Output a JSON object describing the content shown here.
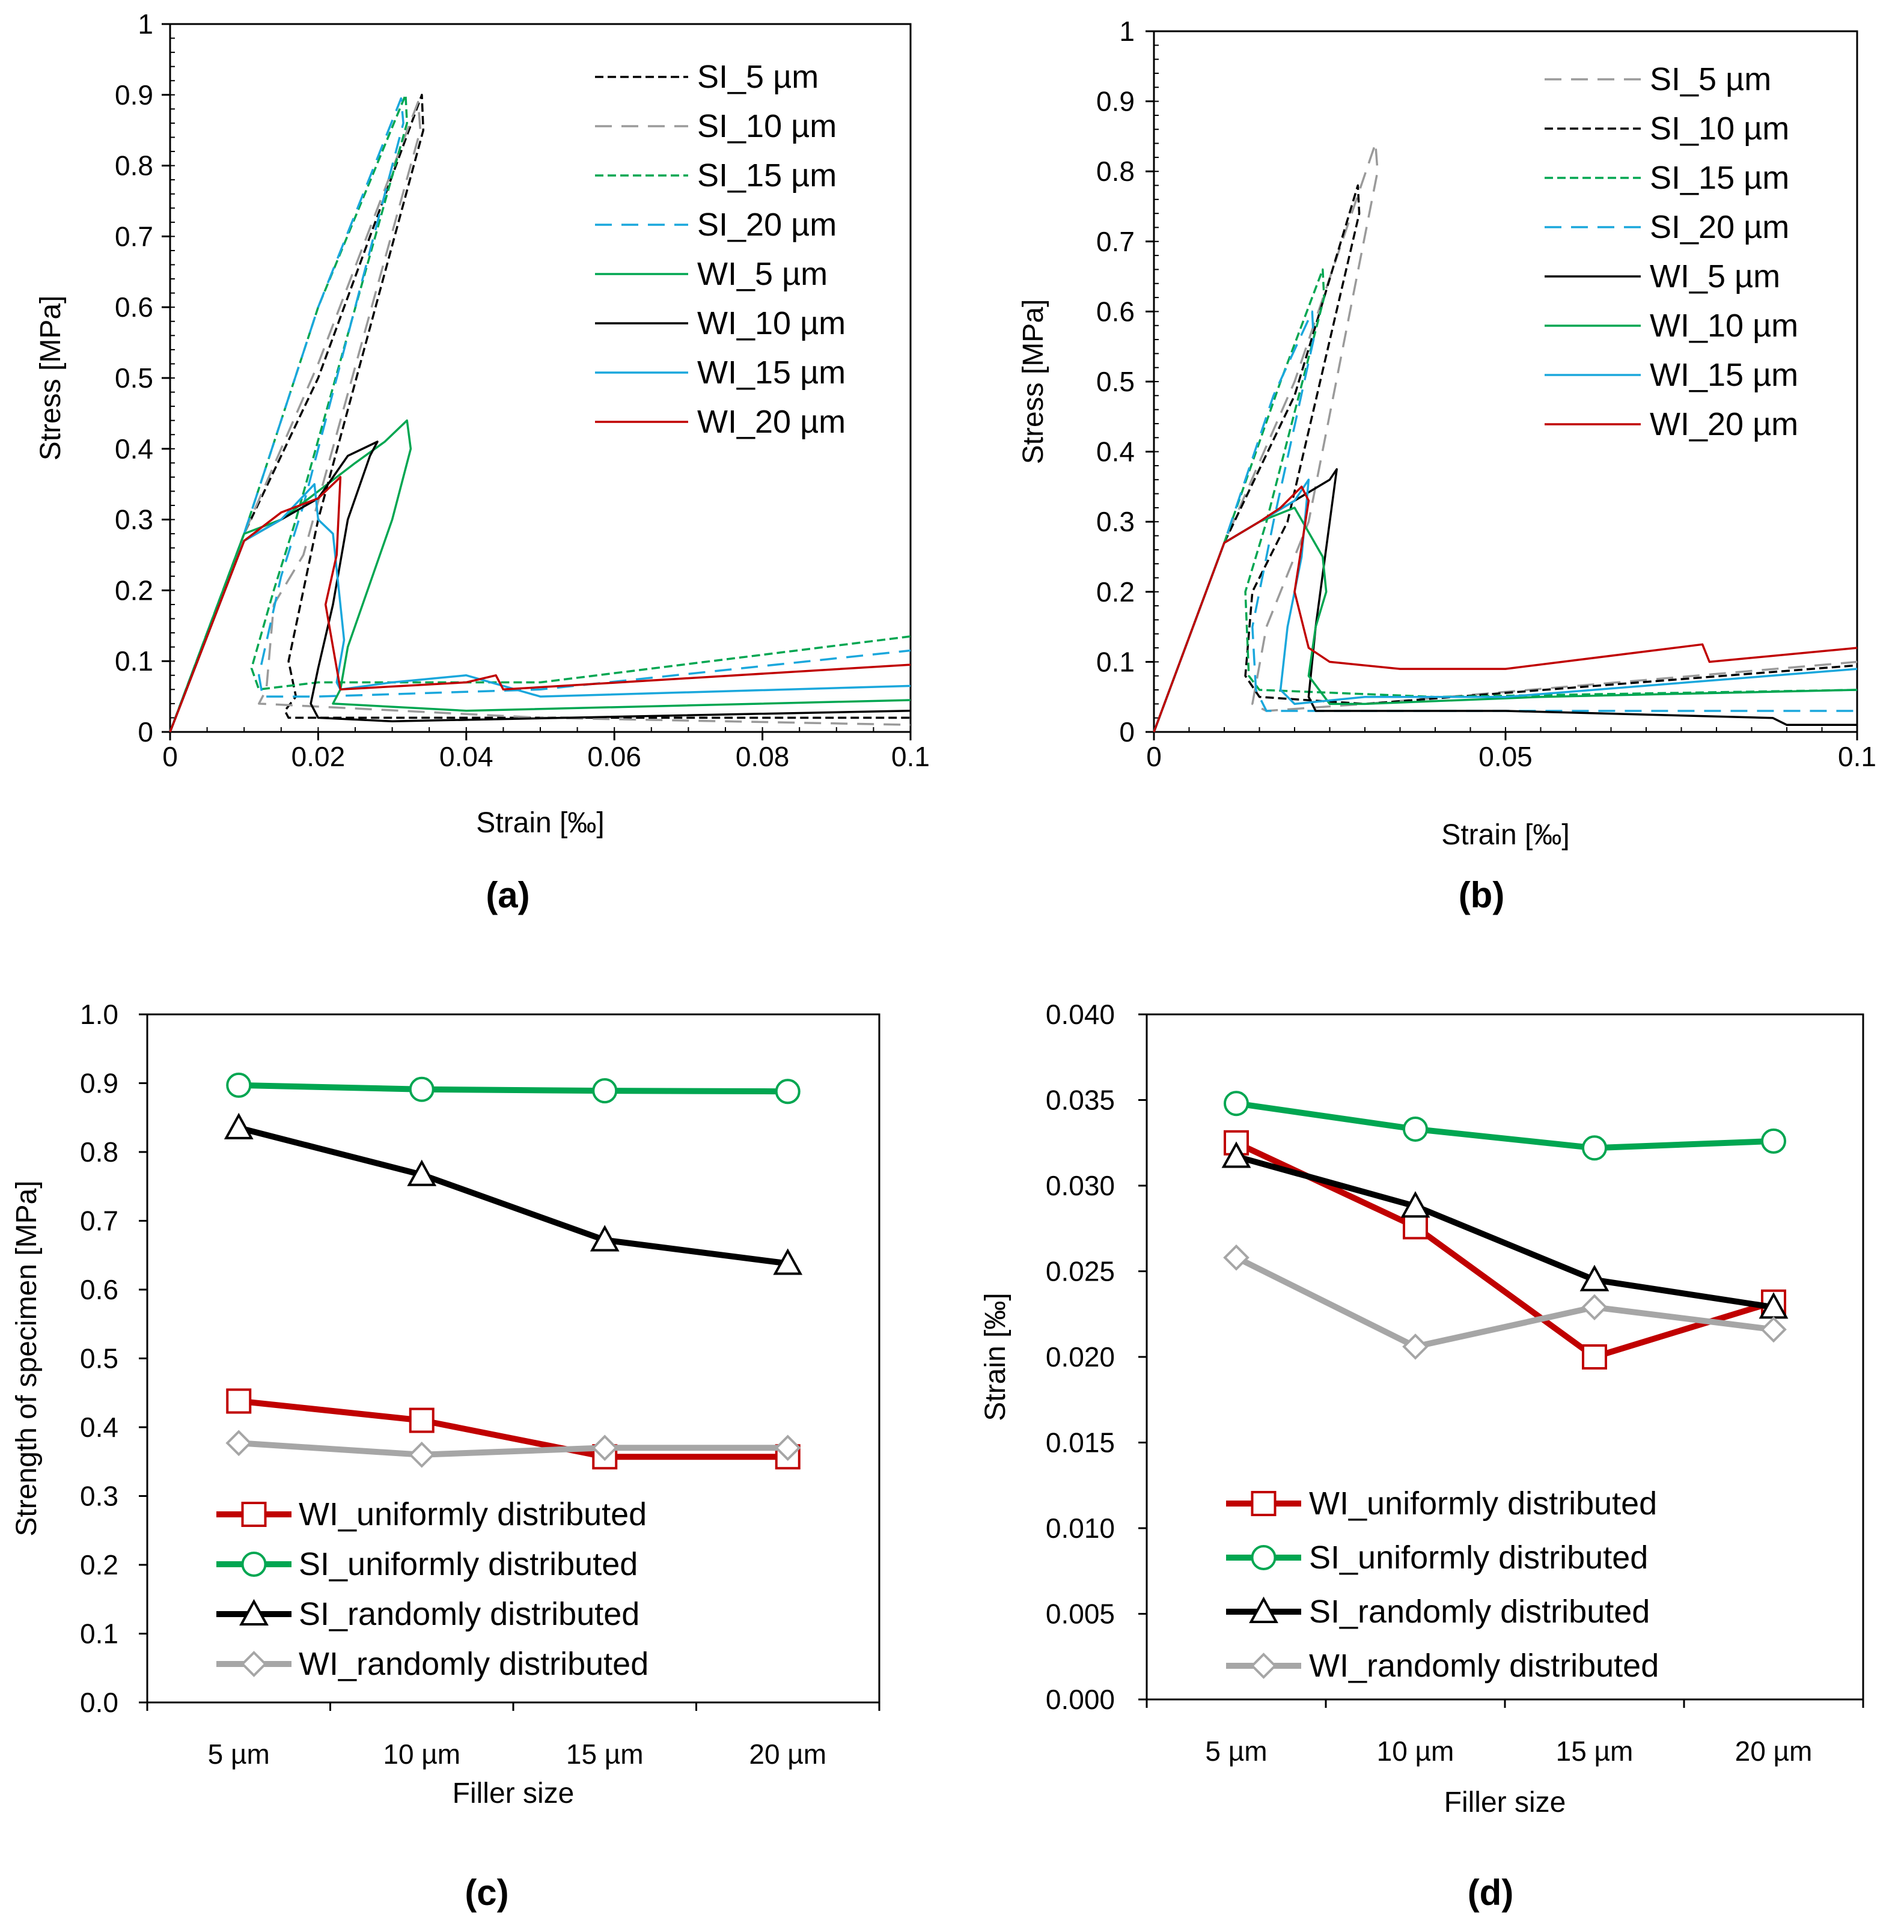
{
  "colors": {
    "black": "#000000",
    "gray": "#9a9a9a",
    "green": "#00a651",
    "cyan": "#1aa7dc",
    "red": "#c00000",
    "lightgray": "#a6a6a6"
  },
  "chart_data": [
    {
      "panel": "(a)",
      "type": "line",
      "xlabel": "Strain [‰]",
      "ylabel": "Stress [MPa]",
      "xlim": [
        0,
        0.1
      ],
      "ylim": [
        0,
        1
      ],
      "xticks": [
        0,
        0.02,
        0.04,
        0.06,
        0.08,
        0.1
      ],
      "xtick_labels": [
        "0",
        "0.02",
        "0.04",
        "0.06",
        "0.08",
        "0.1"
      ],
      "yticks": [
        0,
        0.1,
        0.2,
        0.3,
        0.4,
        0.5,
        0.6,
        0.7,
        0.8,
        0.9,
        1
      ],
      "ytick_labels": [
        "0",
        "0.1",
        "0.2",
        "0.3",
        "0.4",
        "0.5",
        "0.6",
        "0.7",
        "0.8",
        "0.9",
        "1"
      ],
      "legend_position": "top-right",
      "series": [
        {
          "name": "SI_5 µm",
          "color": "black",
          "dash": "short",
          "x": [
            0,
            0.01,
            0.02,
            0.034,
            0.0342,
            0.02,
            0.018,
            0.016,
            0.017,
            0.0155,
            0.016,
            0.1
          ],
          "y": [
            0,
            0.28,
            0.5,
            0.9,
            0.85,
            0.3,
            0.2,
            0.1,
            0.05,
            0.03,
            0.02,
            0.02
          ]
        },
        {
          "name": "SI_10 µm",
          "color": "gray",
          "dash": "long",
          "x": [
            0,
            0.01,
            0.02,
            0.0335,
            0.0338,
            0.018,
            0.014,
            0.013,
            0.012,
            0.05,
            0.1
          ],
          "y": [
            0,
            0.28,
            0.52,
            0.89,
            0.85,
            0.25,
            0.18,
            0.06,
            0.04,
            0.02,
            0.01
          ]
        },
        {
          "name": "SI_15 µm",
          "color": "green",
          "dash": "short",
          "x": [
            0,
            0.01,
            0.02,
            0.0318,
            0.032,
            0.017,
            0.014,
            0.011,
            0.012,
            0.02,
            0.05,
            0.1
          ],
          "y": [
            0,
            0.28,
            0.6,
            0.9,
            0.86,
            0.3,
            0.2,
            0.09,
            0.06,
            0.07,
            0.07,
            0.135
          ]
        },
        {
          "name": "SI_20 µm",
          "color": "cyan",
          "dash": "long",
          "x": [
            0,
            0.01,
            0.02,
            0.0312,
            0.0315,
            0.018,
            0.015,
            0.012,
            0.0125,
            0.02,
            0.05,
            0.1
          ],
          "y": [
            0,
            0.28,
            0.6,
            0.895,
            0.86,
            0.32,
            0.22,
            0.08,
            0.05,
            0.05,
            0.06,
            0.115
          ]
        },
        {
          "name": "WI_5 µm",
          "color": "green",
          "dash": "solid",
          "x": [
            0,
            0.01,
            0.015,
            0.02,
            0.025,
            0.029,
            0.032,
            0.0325,
            0.03,
            0.024,
            0.023,
            0.022,
            0.04,
            0.1
          ],
          "y": [
            0,
            0.28,
            0.3,
            0.34,
            0.38,
            0.41,
            0.44,
            0.4,
            0.3,
            0.12,
            0.06,
            0.04,
            0.03,
            0.045
          ]
        },
        {
          "name": "WI_10 µm",
          "color": "black",
          "dash": "solid",
          "x": [
            0,
            0.01,
            0.015,
            0.02,
            0.024,
            0.028,
            0.027,
            0.024,
            0.022,
            0.02,
            0.019,
            0.02,
            0.03,
            0.1
          ],
          "y": [
            0,
            0.27,
            0.3,
            0.33,
            0.39,
            0.41,
            0.39,
            0.3,
            0.18,
            0.09,
            0.04,
            0.02,
            0.015,
            0.03
          ]
        },
        {
          "name": "WI_15 µm",
          "color": "cyan",
          "dash": "solid",
          "x": [
            0,
            0.01,
            0.015,
            0.0195,
            0.02,
            0.022,
            0.0235,
            0.0225,
            0.023,
            0.03,
            0.04,
            0.05,
            0.1
          ],
          "y": [
            0,
            0.27,
            0.3,
            0.35,
            0.3,
            0.28,
            0.13,
            0.07,
            0.06,
            0.07,
            0.08,
            0.05,
            0.065
          ]
        },
        {
          "name": "WI_20 µm",
          "color": "red",
          "dash": "solid",
          "x": [
            0,
            0.01,
            0.015,
            0.02,
            0.023,
            0.0225,
            0.021,
            0.022,
            0.023,
            0.04,
            0.044,
            0.045,
            0.1
          ],
          "y": [
            0,
            0.27,
            0.31,
            0.33,
            0.36,
            0.25,
            0.18,
            0.12,
            0.06,
            0.07,
            0.08,
            0.06,
            0.095
          ]
        }
      ]
    },
    {
      "panel": "(b)",
      "type": "line",
      "xlabel": "Strain [‰]",
      "ylabel": "Stress [MPa]",
      "xlim": [
        0,
        0.1
      ],
      "ylim": [
        0,
        1
      ],
      "xticks": [
        0,
        0.05,
        0.1
      ],
      "xtick_labels": [
        "0",
        "0.05",
        "0.1"
      ],
      "yticks": [
        0,
        0.1,
        0.2,
        0.3,
        0.4,
        0.5,
        0.6,
        0.7,
        0.8,
        0.9,
        1
      ],
      "ytick_labels": [
        "0",
        "0.1",
        "0.2",
        "0.3",
        "0.4",
        "0.5",
        "0.6",
        "0.7",
        "0.8",
        "0.9",
        "1"
      ],
      "legend_position": "top-right",
      "series": [
        {
          "name": "SI_5 µm",
          "color": "gray",
          "dash": "long",
          "x": [
            0,
            0.01,
            0.02,
            0.0315,
            0.0318,
            0.022,
            0.016,
            0.014,
            0.016,
            0.03,
            0.1
          ],
          "y": [
            0,
            0.27,
            0.5,
            0.84,
            0.8,
            0.3,
            0.15,
            0.04,
            0.03,
            0.04,
            0.1
          ]
        },
        {
          "name": "SI_10 µm",
          "color": "black",
          "dash": "short",
          "x": [
            0,
            0.01,
            0.02,
            0.029,
            0.0292,
            0.019,
            0.014,
            0.013,
            0.015,
            0.03,
            0.1
          ],
          "y": [
            0,
            0.27,
            0.48,
            0.78,
            0.74,
            0.3,
            0.2,
            0.08,
            0.05,
            0.04,
            0.095
          ]
        },
        {
          "name": "SI_15 µm",
          "color": "green",
          "dash": "short",
          "x": [
            0,
            0.01,
            0.018,
            0.024,
            0.0242,
            0.016,
            0.013,
            0.0135,
            0.015,
            0.04,
            0.1
          ],
          "y": [
            0,
            0.27,
            0.5,
            0.66,
            0.62,
            0.3,
            0.2,
            0.08,
            0.06,
            0.05,
            0.06
          ]
        },
        {
          "name": "SI_20 µm",
          "color": "cyan",
          "dash": "long",
          "x": [
            0,
            0.01,
            0.017,
            0.0225,
            0.0227,
            0.017,
            0.014,
            0.0145,
            0.016,
            0.04,
            0.1
          ],
          "y": [
            0,
            0.27,
            0.48,
            0.6,
            0.56,
            0.3,
            0.15,
            0.06,
            0.03,
            0.03,
            0.03
          ]
        },
        {
          "name": "WI_5 µm",
          "color": "black",
          "dash": "solid",
          "x": [
            0,
            0.01,
            0.015,
            0.02,
            0.025,
            0.026,
            0.025,
            0.023,
            0.022,
            0.023,
            0.03,
            0.05,
            0.088,
            0.09,
            0.1
          ],
          "y": [
            0,
            0.27,
            0.3,
            0.33,
            0.36,
            0.375,
            0.3,
            0.15,
            0.05,
            0.03,
            0.03,
            0.03,
            0.02,
            0.01,
            0.01
          ]
        },
        {
          "name": "WI_10 µm",
          "color": "green",
          "dash": "solid",
          "x": [
            0,
            0.01,
            0.015,
            0.02,
            0.024,
            0.0245,
            0.023,
            0.022,
            0.025,
            0.03,
            0.055,
            0.1
          ],
          "y": [
            0,
            0.27,
            0.3,
            0.32,
            0.25,
            0.2,
            0.15,
            0.08,
            0.04,
            0.04,
            0.05,
            0.06
          ]
        },
        {
          "name": "WI_15 µm",
          "color": "cyan",
          "dash": "solid",
          "x": [
            0,
            0.01,
            0.015,
            0.02,
            0.022,
            0.021,
            0.019,
            0.018,
            0.02,
            0.03,
            0.05,
            0.1
          ],
          "y": [
            0,
            0.27,
            0.3,
            0.33,
            0.36,
            0.25,
            0.15,
            0.06,
            0.04,
            0.05,
            0.05,
            0.09
          ]
        },
        {
          "name": "WI_20 µm",
          "color": "red",
          "dash": "solid",
          "x": [
            0,
            0.01,
            0.015,
            0.018,
            0.021,
            0.022,
            0.02,
            0.022,
            0.025,
            0.035,
            0.05,
            0.078,
            0.079,
            0.1
          ],
          "y": [
            0,
            0.27,
            0.3,
            0.32,
            0.35,
            0.33,
            0.2,
            0.12,
            0.1,
            0.09,
            0.09,
            0.125,
            0.1,
            0.12
          ]
        }
      ]
    },
    {
      "panel": "(c)",
      "type": "line",
      "xlabel": "Filler size",
      "ylabel": "Strength of specimen [MPa]",
      "categories": [
        "5 µm",
        "10 µm",
        "15 µm",
        "20 µm"
      ],
      "ylim": [
        0,
        1
      ],
      "yticks": [
        0,
        0.1,
        0.2,
        0.3,
        0.4,
        0.5,
        0.6,
        0.7,
        0.8,
        0.9,
        1
      ],
      "ytick_labels": [
        "0.0",
        "0.1",
        "0.2",
        "0.3",
        "0.4",
        "0.5",
        "0.6",
        "0.7",
        "0.8",
        "0.9",
        "1.0"
      ],
      "legend_position": "bottom-left",
      "series": [
        {
          "name": "WI_uniformly distributed",
          "color": "red",
          "marker": "square",
          "values": [
            0.438,
            0.41,
            0.357,
            0.357
          ]
        },
        {
          "name": "SI_uniformly distributed",
          "color": "green",
          "marker": "circle",
          "values": [
            0.897,
            0.891,
            0.889,
            0.888
          ]
        },
        {
          "name": "SI_randomly distributed",
          "color": "black",
          "marker": "triangle",
          "values": [
            0.835,
            0.767,
            0.672,
            0.638
          ]
        },
        {
          "name": "WI_randomly distributed",
          "color": "lightgray",
          "marker": "diamond",
          "values": [
            0.377,
            0.36,
            0.37,
            0.37
          ]
        }
      ]
    },
    {
      "panel": "(d)",
      "type": "line",
      "xlabel": "Filler size",
      "ylabel": "Strain [‰]",
      "categories": [
        "5 µm",
        "10 µm",
        "15 µm",
        "20 µm"
      ],
      "ylim": [
        0,
        0.04
      ],
      "yticks": [
        0,
        0.005,
        0.01,
        0.015,
        0.02,
        0.025,
        0.03,
        0.035,
        0.04
      ],
      "ytick_labels": [
        "0.000",
        "0.005",
        "0.010",
        "0.015",
        "0.020",
        "0.025",
        "0.030",
        "0.035",
        "0.040"
      ],
      "legend_position": "bottom-left",
      "series": [
        {
          "name": "WI_uniformly distributed",
          "color": "red",
          "marker": "square",
          "values": [
            0.0325,
            0.0276,
            0.02,
            0.0232
          ]
        },
        {
          "name": "SI_uniformly distributed",
          "color": "green",
          "marker": "circle",
          "values": [
            0.0348,
            0.0333,
            0.0322,
            0.0326
          ]
        },
        {
          "name": "SI_randomly distributed",
          "color": "black",
          "marker": "triangle",
          "values": [
            0.0317,
            0.0288,
            0.0245,
            0.0229
          ]
        },
        {
          "name": "WI_randomly distributed",
          "color": "lightgray",
          "marker": "diamond",
          "values": [
            0.0258,
            0.0206,
            0.0229,
            0.0216
          ]
        }
      ]
    }
  ]
}
